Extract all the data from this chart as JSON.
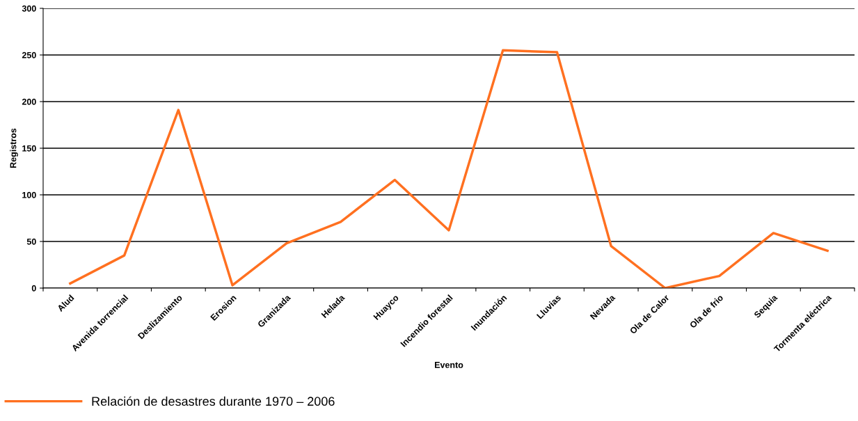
{
  "chart_data": {
    "type": "line",
    "xlabel": "Evento",
    "ylabel": "Registros",
    "categories": [
      "Alud",
      "Avenida torrencial",
      "Deslizamiento",
      "Erosion",
      "Granizada",
      "Helada",
      "Huayco",
      "Incendio forestal",
      "Inundación",
      "Lluvias",
      "Nevada",
      "Ola de Calor",
      "Ola de frio",
      "Sequia",
      "Tormenta eléctrica"
    ],
    "series": [
      {
        "name": "Relación de desastres durante 1970 – 2006",
        "color": "#ff7020",
        "values": [
          5,
          35,
          191,
          3,
          48,
          71,
          116,
          62,
          255,
          253,
          45,
          0,
          13,
          59,
          40
        ]
      }
    ],
    "ylim": [
      0,
      300
    ],
    "yticks": [
      0,
      50,
      100,
      150,
      200,
      250,
      300
    ],
    "grid": "y",
    "legend": "bottom left",
    "marker": "none"
  }
}
